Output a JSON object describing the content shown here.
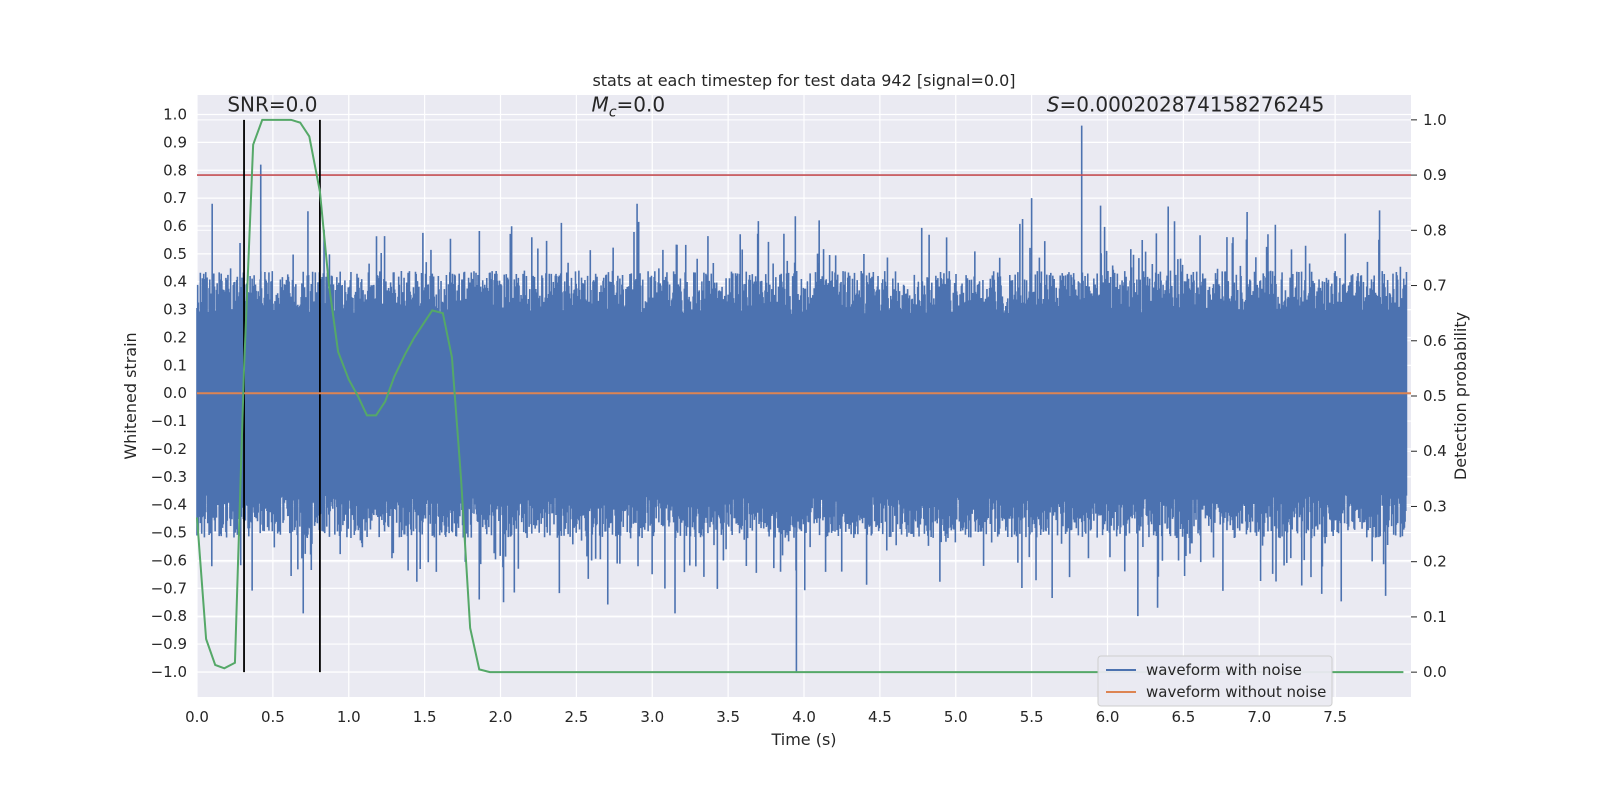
{
  "chart_data": {
    "type": "line",
    "title": "stats at each timestep for test data 942 [signal=0.0]",
    "xlabel": "Time (s)",
    "ylabel": "Whitened strain",
    "y2label": "Detection probability",
    "xlim": [
      0.0,
      8.0
    ],
    "ylim": [
      -1.09,
      1.07
    ],
    "y2lim": [
      -0.045,
      1.045
    ],
    "x_ticks": [
      0.0,
      0.5,
      1.0,
      1.5,
      2.0,
      2.5,
      3.0,
      3.5,
      4.0,
      4.5,
      5.0,
      5.5,
      6.0,
      6.5,
      7.0,
      7.5
    ],
    "x_tick_labels": [
      "0.0",
      "0.5",
      "1.0",
      "1.5",
      "2.0",
      "2.5",
      "3.0",
      "3.5",
      "4.0",
      "4.5",
      "5.0",
      "5.5",
      "6.0",
      "6.5",
      "7.0",
      "7.5"
    ],
    "y_ticks": [
      1.0,
      0.9,
      0.8,
      0.7,
      0.6,
      0.5,
      0.4,
      0.3,
      0.2,
      0.1,
      0.0,
      -0.1,
      -0.2,
      -0.3,
      -0.4,
      -0.5,
      -0.6,
      -0.7,
      -0.8,
      -0.9,
      -1.0
    ],
    "y_tick_labels": [
      "1.0",
      "0.9",
      "0.8",
      "0.7",
      "0.6",
      "0.5",
      "0.4",
      "0.3",
      "0.2",
      "0.1",
      "0.0",
      "−0.1",
      "−0.2",
      "−0.3",
      "−0.4",
      "−0.5",
      "−0.6",
      "−0.7",
      "−0.8",
      "−0.9",
      "−1.0"
    ],
    "y2_ticks": [
      1.0,
      0.9,
      0.8,
      0.7,
      0.6,
      0.5,
      0.4,
      0.3,
      0.2,
      0.1,
      0.0
    ],
    "y2_tick_labels": [
      "1.0",
      "0.9",
      "0.8",
      "0.7",
      "0.6",
      "0.5",
      "0.4",
      "0.3",
      "0.2",
      "0.1",
      "0.0"
    ],
    "grid": true,
    "legend_position": "bottom-right",
    "annotations": [
      {
        "text": "SNR=0.0",
        "x": 0.2
      },
      {
        "text": "M",
        "subscript": "c",
        "suffix": "=0.0",
        "x": 2.6
      },
      {
        "text": "S",
        "suffix": "=0.000202874158276245",
        "x": 5.6
      }
    ],
    "series": [
      {
        "name": "waveform with noise",
        "color": "#4c72b0",
        "kind": "noise",
        "band": [
          -0.44,
          0.36
        ],
        "peaks": [
          {
            "x": 0.42,
            "y": 0.82
          },
          {
            "x": 5.83,
            "y": 0.96
          },
          {
            "x": 3.95,
            "y": -1.0
          },
          {
            "x": 0.7,
            "y": -0.79
          },
          {
            "x": 1.86,
            "y": -0.74
          },
          {
            "x": 2.02,
            "y": -0.75
          },
          {
            "x": 3.15,
            "y": -0.79
          },
          {
            "x": 6.2,
            "y": -0.8
          },
          {
            "x": 6.33,
            "y": -0.77
          },
          {
            "x": 7.28,
            "y": -0.69
          },
          {
            "x": 0.1,
            "y": 0.68
          },
          {
            "x": 5.5,
            "y": 0.7
          },
          {
            "x": 2.9,
            "y": 0.68
          },
          {
            "x": 6.4,
            "y": 0.67
          },
          {
            "x": 6.92,
            "y": 0.65
          },
          {
            "x": 5.75,
            "y": -0.66
          },
          {
            "x": 3.62,
            "y": -0.62
          },
          {
            "x": 4.1,
            "y": 0.62
          }
        ]
      },
      {
        "name": "waveform without noise",
        "color": "#dd8452",
        "kind": "line",
        "x": [
          0.0,
          8.0
        ],
        "y": [
          0.0,
          0.0
        ]
      },
      {
        "name": "detection probability",
        "color": "#55a868",
        "kind": "line",
        "axis": "right",
        "x": [
          0.0,
          0.06,
          0.12,
          0.18,
          0.25,
          0.31,
          0.37,
          0.43,
          0.5,
          0.56,
          0.62,
          0.68,
          0.74,
          0.81,
          0.87,
          0.93,
          1.0,
          1.06,
          1.12,
          1.18,
          1.24,
          1.3,
          1.37,
          1.43,
          1.49,
          1.55,
          1.62,
          1.68,
          1.74,
          1.8,
          1.86,
          1.93,
          2.0,
          2.2,
          7.95
        ],
        "y": [
          0.28,
          0.06,
          0.013,
          0.007,
          0.017,
          0.55,
          0.955,
          1.0,
          1.0,
          1.0,
          1.0,
          0.995,
          0.97,
          0.87,
          0.7,
          0.58,
          0.53,
          0.5,
          0.465,
          0.465,
          0.49,
          0.535,
          0.575,
          0.605,
          0.63,
          0.655,
          0.65,
          0.57,
          0.35,
          0.08,
          0.005,
          0.0,
          0.0,
          0.0,
          0.0
        ]
      }
    ],
    "reference_lines": [
      {
        "kind": "horizontal",
        "axis": "right",
        "y": 0.9,
        "color": "#c44e52"
      },
      {
        "kind": "vertical",
        "x": 0.31,
        "color": "#000000",
        "y2_range": [
          0.0,
          1.0
        ]
      },
      {
        "kind": "vertical",
        "x": 0.81,
        "color": "#000000",
        "y2_range": [
          0.0,
          1.0
        ]
      }
    ],
    "legend": [
      {
        "label": "waveform with noise",
        "color": "#4c72b0"
      },
      {
        "label": "waveform without noise",
        "color": "#dd8452"
      }
    ]
  }
}
